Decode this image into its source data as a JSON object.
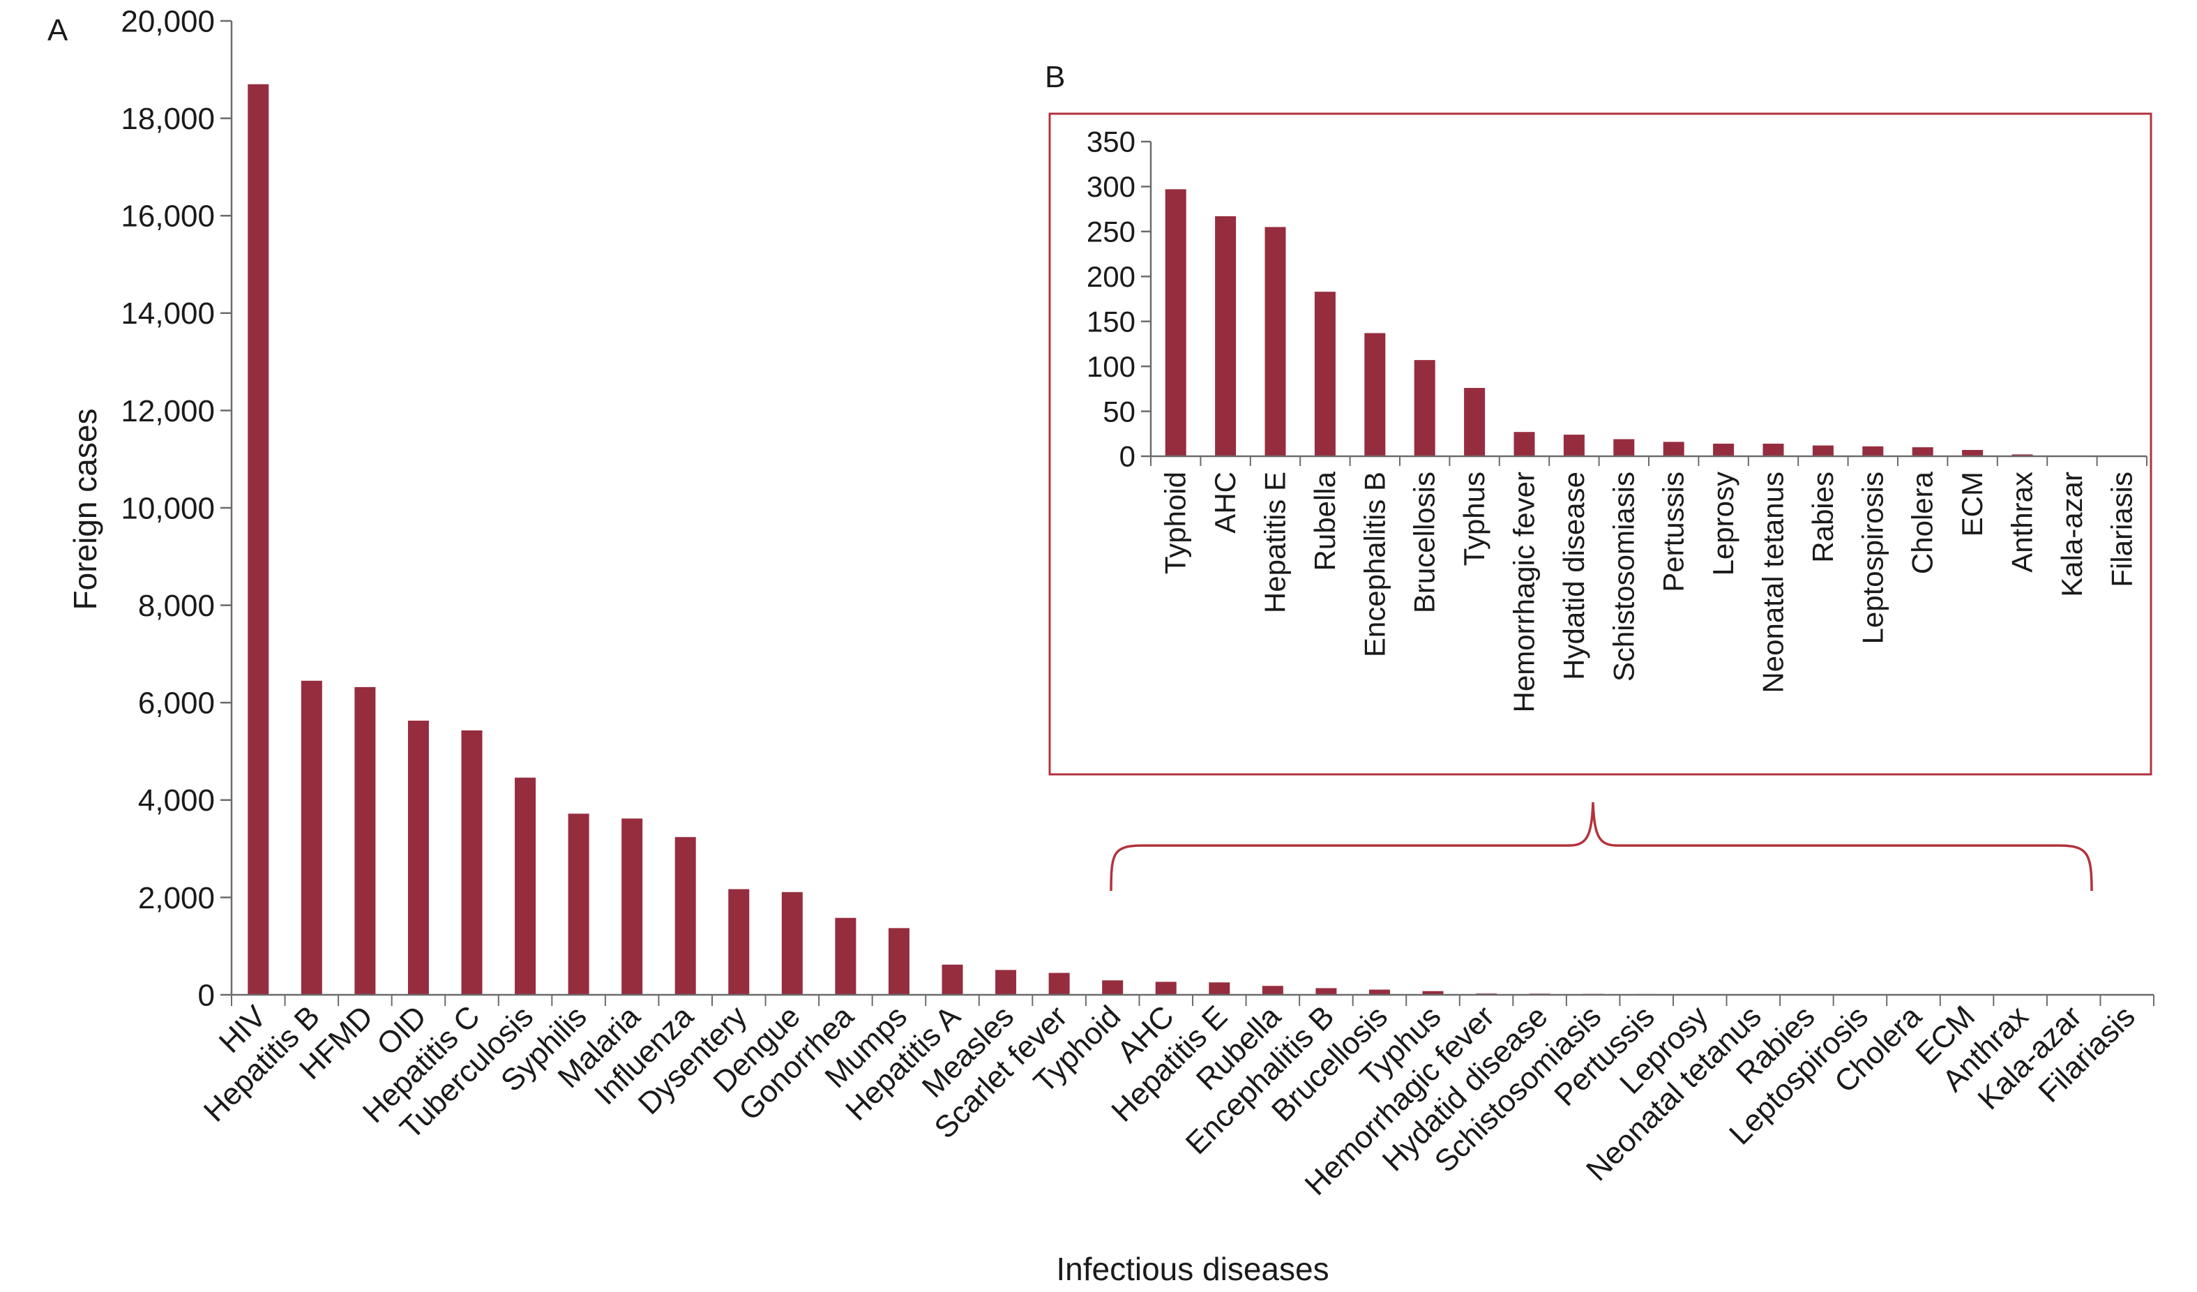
{
  "colors": {
    "bar": "#962d3e",
    "axis": "#6b6b6b",
    "inset_border": "#b3323b",
    "brace": "#b3323b",
    "text": "#1a1a1a"
  },
  "chart_data": [
    {
      "type": "bar",
      "panel": "A",
      "xlabel": "Infectious diseases",
      "ylabel": "Foreign cases",
      "ylim": [
        0,
        20000
      ],
      "yticks": [
        "0",
        "2,000",
        "4,000",
        "6,000",
        "8,000",
        "10,000",
        "12,000",
        "14,000",
        "16,000",
        "18,000",
        "20,000"
      ],
      "categories": [
        "HIV",
        "Hepatitis B",
        "HFMD",
        "OID",
        "Hepatitis C",
        "Tuberculosis",
        "Syphilis",
        "Malaria",
        "Influenza",
        "Dysentery",
        "Dengue",
        "Gonorrhea",
        "Mumps",
        "Hepatitis A",
        "Measles",
        "Scarlet fever",
        "Typhoid",
        "AHC",
        "Hepatitis E",
        "Rubella",
        "Encephalitis B",
        "Brucellosis",
        "Typhus",
        "Hemorrhagic fever",
        "Hydatid disease",
        "Schistosomiasis",
        "Pertussis",
        "Leprosy",
        "Neonatal tetanus",
        "Rabies",
        "Leptospirosis",
        "Cholera",
        "ECM",
        "Anthrax",
        "Kala-azar",
        "Filariasis"
      ],
      "values": [
        18700,
        6450,
        6320,
        5630,
        5430,
        4460,
        3720,
        3620,
        3240,
        2170,
        2110,
        1580,
        1370,
        620,
        510,
        450,
        297,
        267,
        255,
        183,
        137,
        107,
        76,
        27,
        24,
        19,
        16,
        14,
        14,
        12,
        11,
        10,
        7,
        2,
        0,
        0
      ],
      "grid": false,
      "legend": "none"
    },
    {
      "type": "bar",
      "panel": "B",
      "xlabel": "",
      "ylabel": "",
      "ylim": [
        0,
        350
      ],
      "yticks": [
        "0",
        "50",
        "100",
        "150",
        "200",
        "250",
        "300",
        "350"
      ],
      "categories": [
        "Typhoid",
        "AHC",
        "Hepatitis E",
        "Rubella",
        "Encephalitis B",
        "Brucellosis",
        "Typhus",
        "Hemorrhagic fever",
        "Hydatid disease",
        "Schistosomiasis",
        "Pertussis",
        "Leprosy",
        "Neonatal tetanus",
        "Rabies",
        "Leptospirosis",
        "Cholera",
        "ECM",
        "Anthrax",
        "Kala-azar",
        "Filariasis"
      ],
      "values": [
        297,
        267,
        255,
        183,
        137,
        107,
        76,
        27,
        24,
        19,
        16,
        14,
        14,
        12,
        11,
        10,
        7,
        2,
        0,
        0
      ],
      "grid": false,
      "legend": "none"
    }
  ]
}
